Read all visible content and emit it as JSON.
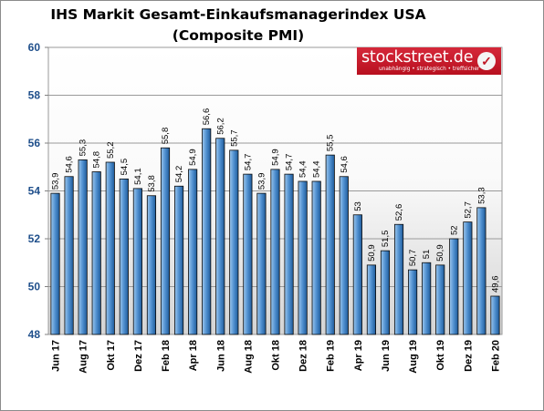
{
  "chart_data": {
    "type": "bar",
    "title": "IHS Markit Gesamt-Einkaufsmanagerindex USA",
    "subtitle": "(Composite PMI)",
    "xlabel": "",
    "ylabel": "",
    "ylim": [
      48,
      60
    ],
    "yticks": [
      48,
      50,
      52,
      54,
      56,
      58,
      60
    ],
    "grid": true,
    "legend": "none",
    "bar_color": "#4f8fcf",
    "categories": [
      "Jun 17",
      "Jul 17",
      "Aug 17",
      "Sep 17",
      "Okt 17",
      "Nov 17",
      "Dez 17",
      "Jan 18",
      "Feb 18",
      "Mrz 18",
      "Apr 18",
      "Mai 18",
      "Jun 18",
      "Jul 18",
      "Aug 18",
      "Sep 18",
      "Okt 18",
      "Nov 18",
      "Dez 18",
      "Jan 19",
      "Feb 19",
      "Mrz 19",
      "Apr 19",
      "Mai 19",
      "Jun 19",
      "Jul 19",
      "Aug 19",
      "Sep 19",
      "Okt 19",
      "Nov 19",
      "Dez 19",
      "Jan 20",
      "Feb 20"
    ],
    "visible_x_labels": [
      "Jun 17",
      "",
      "Aug 17",
      "",
      "Okt 17",
      "",
      "Dez 17",
      "",
      "Feb 18",
      "",
      "Apr 18",
      "",
      "Jun 18",
      "",
      "Aug 18",
      "",
      "Okt 18",
      "",
      "Dez 18",
      "",
      "Feb 19",
      "",
      "Apr 19",
      "",
      "Jun 19",
      "",
      "Aug 19",
      "",
      "Okt 19",
      "",
      "Dez 19",
      "",
      "Feb 20"
    ],
    "values": [
      53.9,
      54.6,
      55.3,
      54.8,
      55.2,
      54.5,
      54.1,
      53.8,
      55.8,
      54.2,
      54.9,
      56.6,
      56.2,
      55.7,
      54.7,
      53.9,
      54.9,
      54.7,
      54.4,
      54.4,
      55.5,
      54.6,
      53.0,
      50.9,
      51.5,
      52.6,
      50.7,
      51.0,
      50.9,
      52.0,
      52.7,
      53.3,
      49.6
    ],
    "data_labels": [
      "53,9",
      "54,6",
      "55,3",
      "54,8",
      "55,2",
      "54,5",
      "54,1",
      "53,8",
      "55,8",
      "54,2",
      "54,9",
      "56,6",
      "56,2",
      "55,7",
      "54,7",
      "53,9",
      "54,9",
      "54,7",
      "54,4",
      "54,4",
      "55,5",
      "54,6",
      "53",
      "50,9",
      "51,5",
      "52,6",
      "50,7",
      "51",
      "50,9",
      "52",
      "52,7",
      "53,3",
      "49,6"
    ]
  },
  "logo": {
    "text": "stockstreet.de",
    "tagline": "unabhängig • strategisch • treffsicher"
  }
}
